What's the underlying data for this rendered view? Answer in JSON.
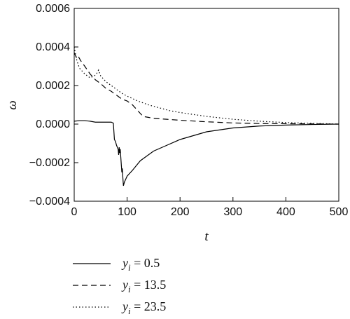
{
  "chart_data": {
    "type": "line",
    "title": "",
    "xlabel": "t",
    "ylabel": "ω",
    "xlim": [
      0,
      500
    ],
    "ylim": [
      -0.0004,
      0.0006
    ],
    "x_ticks": [
      "0",
      "100",
      "200",
      "300",
      "400",
      "500"
    ],
    "y_ticks": [
      "-0.0004",
      "-0.0002",
      "0.0000",
      "0.0002",
      "0.0004",
      "0.0006"
    ],
    "grid": false,
    "legend_position": "bottom-left",
    "series": [
      {
        "name_var": "y",
        "name_sub": "i",
        "name_value": " = 0.5",
        "style": "solid",
        "points": [
          [
            0,
            1.5e-05
          ],
          [
            10,
            1.8e-05
          ],
          [
            20,
            1.8e-05
          ],
          [
            30,
            1.5e-05
          ],
          [
            40,
            1e-05
          ],
          [
            50,
            1e-05
          ],
          [
            60,
            1e-05
          ],
          [
            70,
            1e-05
          ],
          [
            74,
            5e-06
          ],
          [
            76,
            -8e-05
          ],
          [
            78,
            -9e-05
          ],
          [
            80,
            -0.00011
          ],
          [
            83,
            -0.00013
          ],
          [
            84,
            -0.00016
          ],
          [
            85,
            -0.00012
          ],
          [
            86,
            -0.00015
          ],
          [
            87,
            -0.00013
          ],
          [
            88,
            -0.00017
          ],
          [
            89,
            -0.00021
          ],
          [
            90,
            -0.00025
          ],
          [
            91,
            -0.00023
          ],
          [
            92,
            -0.00028
          ],
          [
            93,
            -0.00032
          ],
          [
            95,
            -0.0003
          ],
          [
            100,
            -0.00027
          ],
          [
            110,
            -0.00024
          ],
          [
            125,
            -0.00019
          ],
          [
            150,
            -0.00014
          ],
          [
            175,
            -0.00011
          ],
          [
            200,
            -8e-05
          ],
          [
            225,
            -6e-05
          ],
          [
            250,
            -4e-05
          ],
          [
            275,
            -3e-05
          ],
          [
            300,
            -2e-05
          ],
          [
            350,
            -1e-05
          ],
          [
            400,
            -5e-06
          ],
          [
            450,
            -2e-06
          ],
          [
            500,
            0
          ]
        ]
      },
      {
        "name_var": "y",
        "name_sub": "i",
        "name_value": " = 13.5",
        "style": "dashed",
        "points": [
          [
            0,
            0.00037
          ],
          [
            5,
            0.00034
          ],
          [
            8,
            0.00035
          ],
          [
            12,
            0.00033
          ],
          [
            20,
            0.0003
          ],
          [
            30,
            0.00026
          ],
          [
            40,
            0.00023
          ],
          [
            50,
            0.00021
          ],
          [
            60,
            0.000185
          ],
          [
            70,
            0.00017
          ],
          [
            80,
            0.00015
          ],
          [
            90,
            0.00013
          ],
          [
            100,
            0.00012
          ],
          [
            110,
            0.0001
          ],
          [
            120,
            7e-05
          ],
          [
            130,
            4e-05
          ],
          [
            140,
            3.5e-05
          ],
          [
            150,
            3e-05
          ],
          [
            175,
            2.5e-05
          ],
          [
            200,
            2e-05
          ],
          [
            250,
            1.2e-05
          ],
          [
            300,
            6e-06
          ],
          [
            350,
            3e-06
          ],
          [
            400,
            2e-06
          ],
          [
            450,
            1e-06
          ],
          [
            500,
            0
          ]
        ]
      },
      {
        "name_var": "y",
        "name_sub": "i",
        "name_value": " = 23.5",
        "style": "dotted",
        "points": [
          [
            0,
            0.0004
          ],
          [
            5,
            0.00033
          ],
          [
            10,
            0.00029
          ],
          [
            20,
            0.00026
          ],
          [
            30,
            0.00024
          ],
          [
            38,
            0.00025
          ],
          [
            42,
            0.00026
          ],
          [
            46,
            0.00028
          ],
          [
            50,
            0.00025
          ],
          [
            60,
            0.00022
          ],
          [
            75,
            0.00019
          ],
          [
            90,
            0.00016
          ],
          [
            100,
            0.000145
          ],
          [
            120,
            0.00012
          ],
          [
            140,
            0.0001
          ],
          [
            160,
            8.5e-05
          ],
          [
            180,
            7e-05
          ],
          [
            200,
            6e-05
          ],
          [
            250,
            4e-05
          ],
          [
            300,
            2.5e-05
          ],
          [
            350,
            1.5e-05
          ],
          [
            400,
            8e-06
          ],
          [
            450,
            4e-06
          ],
          [
            500,
            0
          ]
        ]
      }
    ]
  }
}
